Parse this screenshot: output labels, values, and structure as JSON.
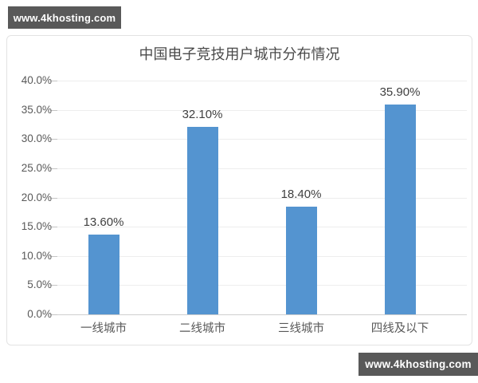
{
  "watermark_top": {
    "text": "www.4khosting.com"
  },
  "watermark_bottom": {
    "text": "www.4khosting.com"
  },
  "chart_data": {
    "type": "bar",
    "title": "中国电子竞技用户城市分布情况",
    "categories": [
      "一线城市",
      "二线城市",
      "三线城市",
      "四线及以下"
    ],
    "values": [
      13.6,
      32.1,
      18.4,
      35.9
    ],
    "data_labels": [
      "13.60%",
      "32.10%",
      "18.40%",
      "35.90%"
    ],
    "y_tick_labels": [
      "40.0%",
      "35.0%",
      "30.0%",
      "25.0%",
      "20.0%",
      "15.0%",
      "10.0%",
      "5.0%",
      "0.0%"
    ],
    "y_tick_values": [
      40,
      35,
      30,
      25,
      20,
      15,
      10,
      5,
      0
    ],
    "ylim": [
      0,
      40
    ],
    "xlabel": "",
    "ylabel": "",
    "grid": true,
    "legend": false,
    "bar_color": "#5494d0",
    "gridline_color": "#ededed",
    "axis_color": "#cfcfcf"
  }
}
